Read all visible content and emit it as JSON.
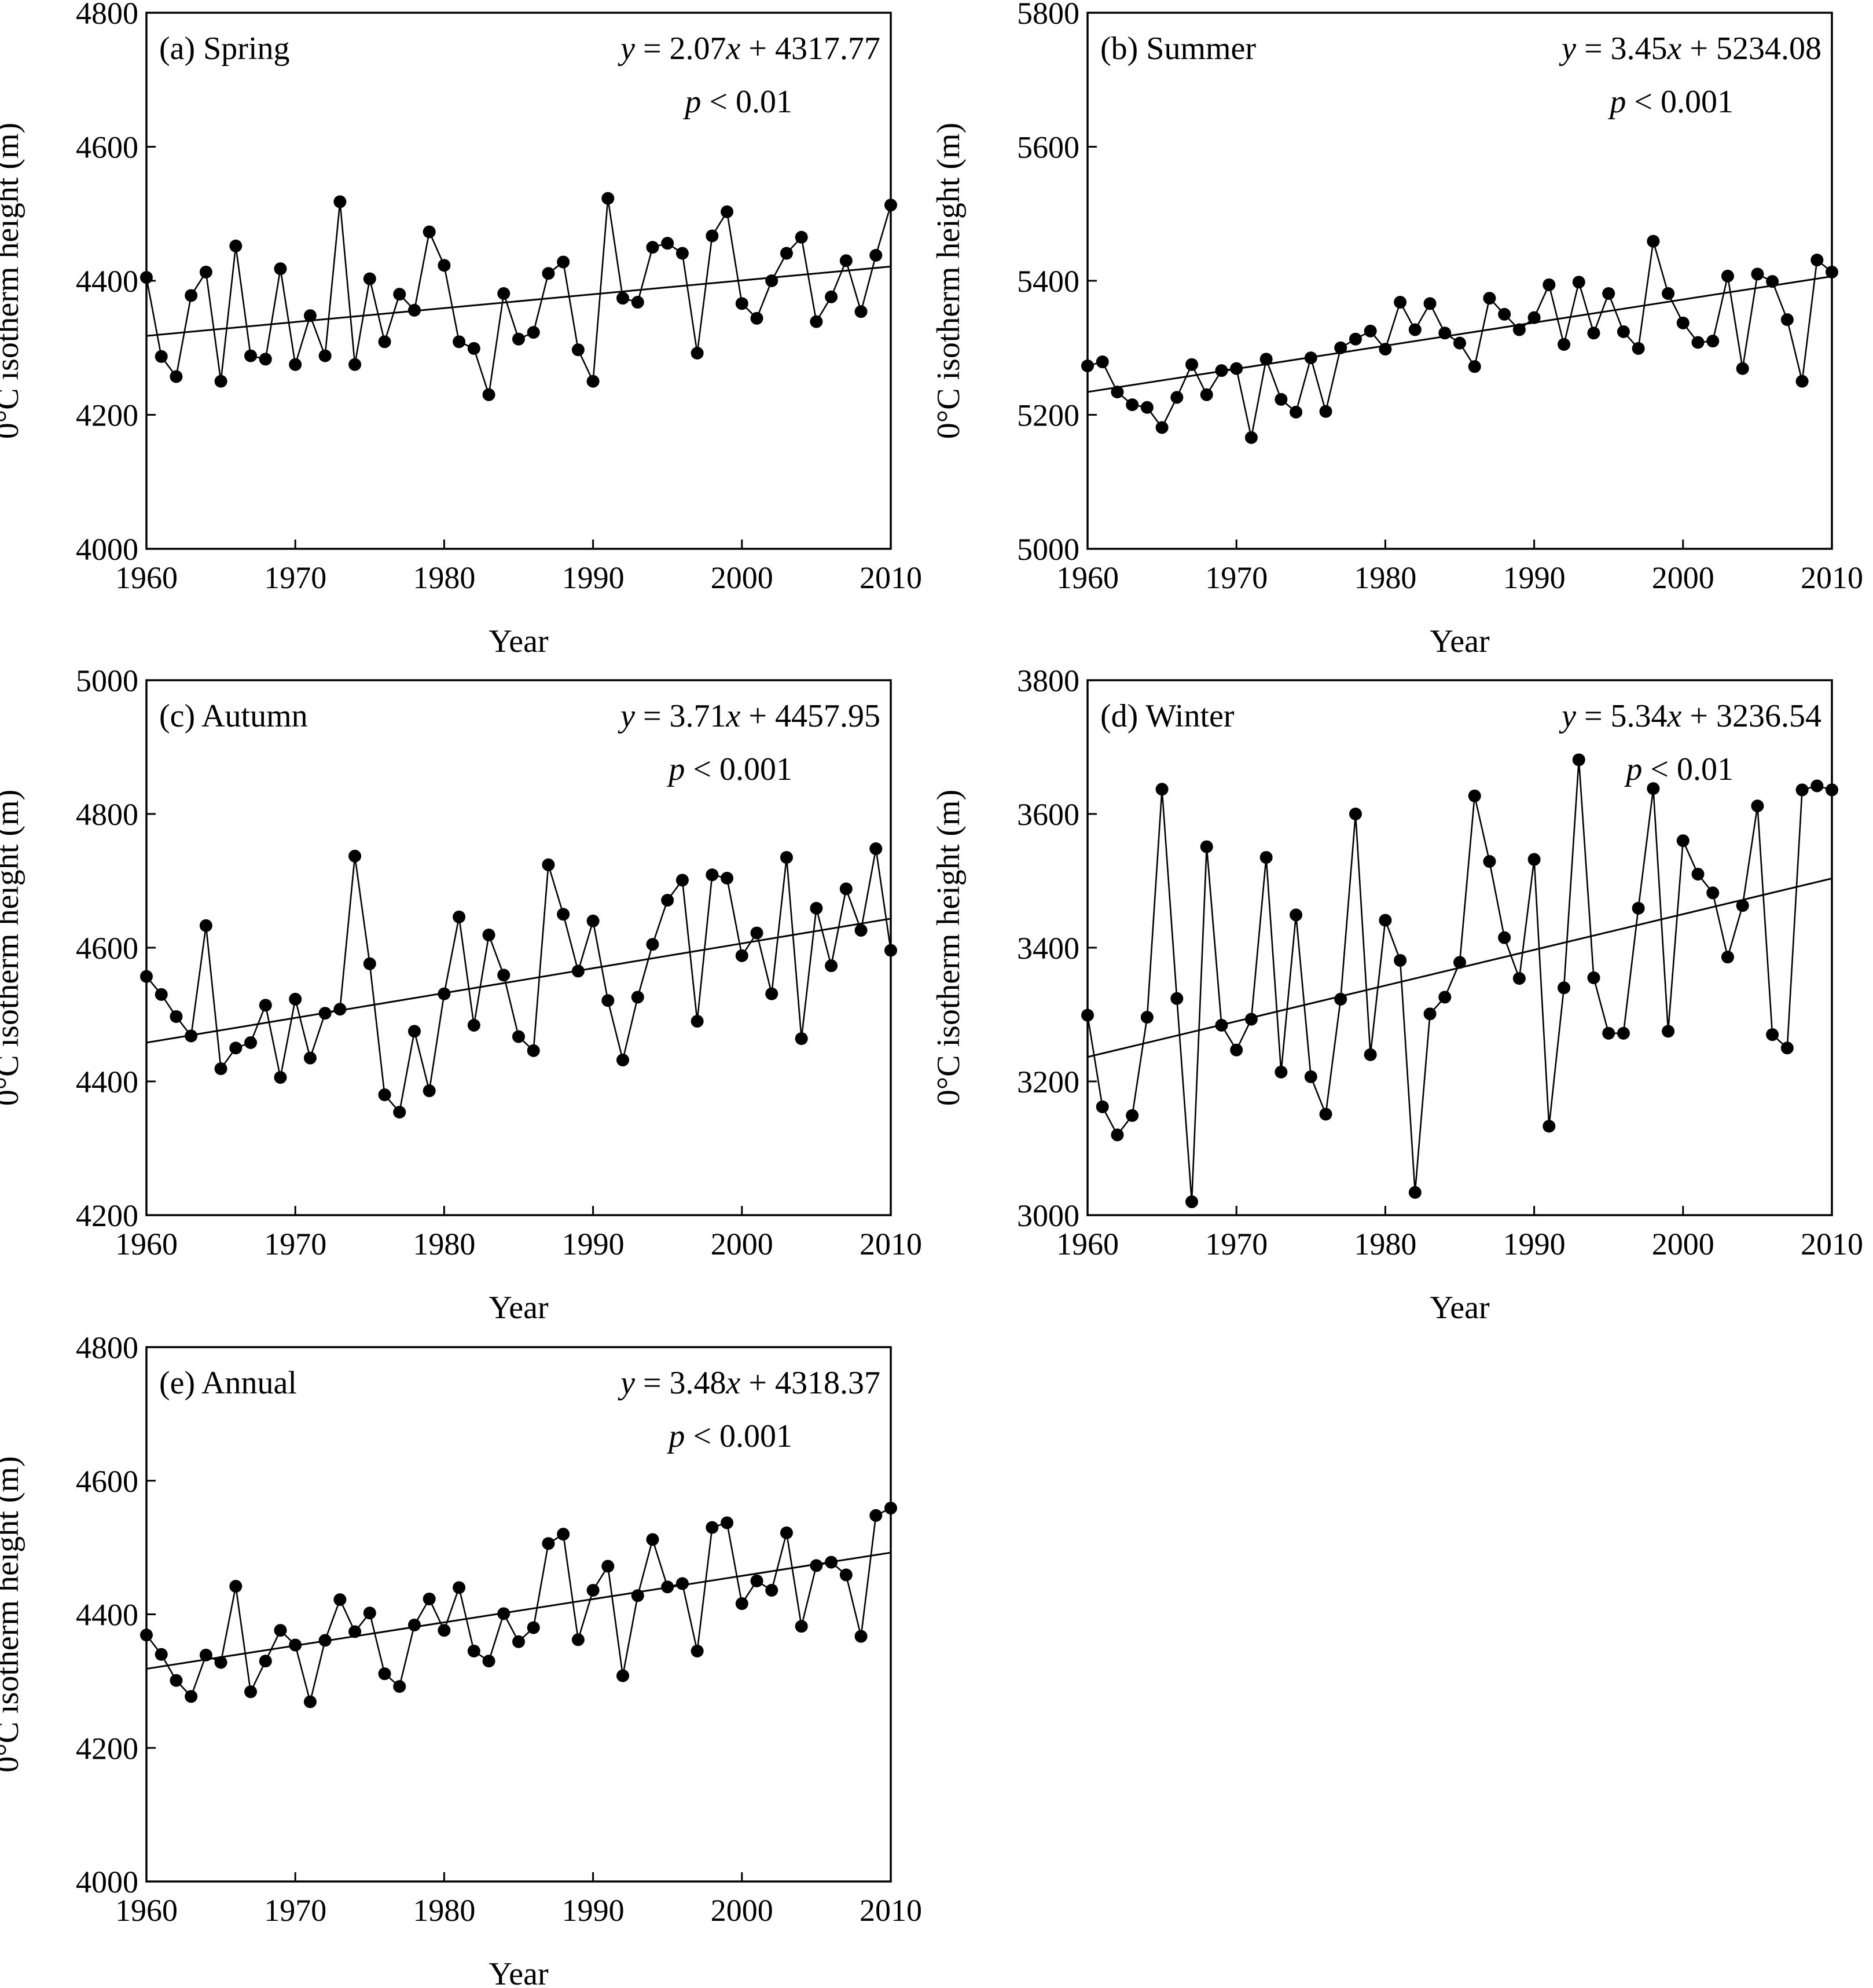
{
  "figure": {
    "panels_count": 5
  },
  "chart_data": [
    {
      "type": "scatter",
      "panel_label": "(a) Spring",
      "equation": {
        "y": "y",
        "eq": " = 2.07",
        "x": "x",
        "rest": " + 4317.77"
      },
      "pvalue": {
        "p": "p",
        "rest": " < 0.01"
      },
      "xlabel": "Year",
      "ylabel": "0°C isotherm height (m)",
      "xlim": [
        1960,
        2010
      ],
      "ylim": [
        4000,
        4800
      ],
      "xticks": [
        1960,
        1970,
        1980,
        1990,
        2000,
        2010
      ],
      "yticks": [
        4000,
        4200,
        4400,
        4600,
        4800
      ],
      "trend": {
        "slope": 2.07,
        "intercept": 4317.77,
        "x0": 1960
      },
      "x": [
        1960,
        1961,
        1962,
        1963,
        1964,
        1965,
        1966,
        1967,
        1968,
        1969,
        1970,
        1971,
        1972,
        1973,
        1974,
        1975,
        1976,
        1977,
        1978,
        1979,
        1980,
        1981,
        1982,
        1983,
        1984,
        1985,
        1986,
        1987,
        1988,
        1989,
        1990,
        1991,
        1992,
        1993,
        1994,
        1995,
        1996,
        1997,
        1998,
        1999,
        2000,
        2001,
        2002,
        2003,
        2004,
        2005,
        2006,
        2007,
        2008,
        2009,
        2010
      ],
      "y": [
        4405,
        4287,
        4257,
        4378,
        4413,
        4250,
        4452,
        4288,
        4283,
        4418,
        4275,
        4348,
        4288,
        4518,
        4275,
        4403,
        4309,
        4380,
        4356,
        4473,
        4423,
        4309,
        4299,
        4230,
        4381,
        4313,
        4323,
        4411,
        4428,
        4297,
        4250,
        4523,
        4374,
        4368,
        4450,
        4456,
        4441,
        4292,
        4467,
        4503,
        4366,
        4344,
        4400,
        4441,
        4465,
        4339,
        4376,
        4430,
        4354,
        4438,
        4513
      ]
    },
    {
      "type": "scatter",
      "panel_label": "(b) Summer",
      "equation": {
        "y": "y",
        "eq": " = 3.45",
        "x": "x",
        "rest": " + 5234.08"
      },
      "pvalue": {
        "p": "p",
        "rest": " < 0.001"
      },
      "xlabel": "Year",
      "ylabel": "0°C isotherm height (m)",
      "xlim": [
        1960,
        2010
      ],
      "ylim": [
        5000,
        5800
      ],
      "xticks": [
        1960,
        1970,
        1980,
        1990,
        2000,
        2010
      ],
      "yticks": [
        5000,
        5200,
        5400,
        5600,
        5800
      ],
      "trend": {
        "slope": 3.45,
        "intercept": 5234.08,
        "x0": 1960
      },
      "x": [
        1960,
        1961,
        1962,
        1963,
        1964,
        1965,
        1966,
        1967,
        1968,
        1969,
        1970,
        1971,
        1972,
        1973,
        1974,
        1975,
        1976,
        1977,
        1978,
        1979,
        1980,
        1981,
        1982,
        1983,
        1984,
        1985,
        1986,
        1987,
        1988,
        1989,
        1990,
        1991,
        1992,
        1993,
        1994,
        1995,
        1996,
        1997,
        1998,
        1999,
        2000,
        2001,
        2002,
        2003,
        2004,
        2005,
        2006,
        2007,
        2008,
        2009,
        2010
      ],
      "y": [
        5273,
        5279,
        5234,
        5215,
        5211,
        5181,
        5226,
        5275,
        5230,
        5266,
        5269,
        5166,
        5283,
        5223,
        5204,
        5285,
        5205,
        5300,
        5313,
        5325,
        5298,
        5368,
        5327,
        5366,
        5322,
        5307,
        5272,
        5374,
        5350,
        5327,
        5345,
        5394,
        5305,
        5398,
        5322,
        5381,
        5324,
        5299,
        5459,
        5381,
        5337,
        5308,
        5310,
        5407,
        5269,
        5410,
        5399,
        5342,
        5250,
        5431,
        5413
      ]
    },
    {
      "type": "scatter",
      "panel_label": "(c) Autumn",
      "equation": {
        "y": "y",
        "eq": " = 3.71",
        "x": "x",
        "rest": " + 4457.95"
      },
      "pvalue": {
        "p": "p",
        "rest": " < 0.001"
      },
      "xlabel": "Year",
      "ylabel": "0°C isotherm height (m)",
      "xlim": [
        1960,
        2010
      ],
      "ylim": [
        4200,
        5000
      ],
      "xticks": [
        1960,
        1970,
        1980,
        1990,
        2000,
        2010
      ],
      "yticks": [
        4200,
        4400,
        4600,
        4800,
        5000
      ],
      "trend": {
        "slope": 3.71,
        "intercept": 4457.95,
        "x0": 1960
      },
      "x": [
        1960,
        1961,
        1962,
        1963,
        1964,
        1965,
        1966,
        1967,
        1968,
        1969,
        1970,
        1971,
        1972,
        1973,
        1974,
        1975,
        1976,
        1977,
        1978,
        1979,
        1980,
        1981,
        1982,
        1983,
        1984,
        1985,
        1986,
        1987,
        1988,
        1989,
        1990,
        1991,
        1992,
        1993,
        1994,
        1995,
        1996,
        1997,
        1998,
        1999,
        2000,
        2001,
        2002,
        2003,
        2004,
        2005,
        2006,
        2007,
        2008,
        2009,
        2010
      ],
      "y": [
        4557,
        4530,
        4497,
        4468,
        4633,
        4419,
        4450,
        4458,
        4514,
        4406,
        4523,
        4435,
        4502,
        4508,
        4737,
        4576,
        4380,
        4354,
        4475,
        4386,
        4531,
        4646,
        4484,
        4619,
        4559,
        4467,
        4446,
        4724,
        4650,
        4565,
        4640,
        4521,
        4432,
        4526,
        4605,
        4671,
        4701,
        4490,
        4709,
        4704,
        4588,
        4622,
        4531,
        4735,
        4464,
        4659,
        4573,
        4688,
        4626,
        4748,
        4596
      ]
    },
    {
      "type": "scatter",
      "panel_label": "(d) Winter",
      "equation": {
        "y": "y",
        "eq": " = 5.34",
        "x": "x",
        "rest": " + 3236.54"
      },
      "pvalue": {
        "p": "p",
        "rest": " < 0.01"
      },
      "xlabel": "Year",
      "ylabel": "0°C isotherm height (m)",
      "xlim": [
        1960,
        2010
      ],
      "ylim": [
        3000,
        3800
      ],
      "xticks": [
        1960,
        1970,
        1980,
        1990,
        2000,
        2010
      ],
      "yticks": [
        3000,
        3200,
        3400,
        3600,
        3800
      ],
      "trend": {
        "slope": 5.34,
        "intercept": 3236.54,
        "x0": 1960
      },
      "x": [
        1960,
        1961,
        1962,
        1963,
        1964,
        1965,
        1966,
        1967,
        1968,
        1969,
        1970,
        1971,
        1972,
        1973,
        1974,
        1975,
        1976,
        1977,
        1978,
        1979,
        1980,
        1981,
        1982,
        1983,
        1984,
        1985,
        1986,
        1987,
        1988,
        1989,
        1990,
        1991,
        1992,
        1993,
        1994,
        1995,
        1996,
        1997,
        1998,
        1999,
        2000,
        2001,
        2002,
        2003,
        2004,
        2005,
        2006,
        2007,
        2008,
        2009,
        2010
      ],
      "y": [
        3299,
        3162,
        3120,
        3149,
        3296,
        3637,
        3324,
        3020,
        3551,
        3284,
        3247,
        3293,
        3535,
        3214,
        3449,
        3207,
        3151,
        3323,
        3600,
        3240,
        3441,
        3381,
        3034,
        3301,
        3326,
        3378,
        3627,
        3529,
        3415,
        3354,
        3532,
        3133,
        3340,
        3681,
        3355,
        3272,
        3272,
        3459,
        3638,
        3275,
        3560,
        3510,
        3482,
        3386,
        3463,
        3612,
        3270,
        3250,
        3636,
        3642,
        3636
      ]
    },
    {
      "type": "scatter",
      "panel_label": "(e) Annual",
      "equation": {
        "y": "y",
        "eq": " = 3.48",
        "x": "x",
        "rest": " + 4318.37"
      },
      "pvalue": {
        "p": "p",
        "rest": " < 0.001"
      },
      "xlabel": "Year",
      "ylabel": "0°C isotherm height (m)",
      "xlim": [
        1960,
        2010
      ],
      "ylim": [
        4000,
        4800
      ],
      "xticks": [
        1960,
        1970,
        1980,
        1990,
        2000,
        2010
      ],
      "yticks": [
        4000,
        4200,
        4400,
        4600,
        4800
      ],
      "trend": {
        "slope": 3.48,
        "intercept": 4318.37,
        "x0": 1960
      },
      "x": [
        1960,
        1961,
        1962,
        1963,
        1964,
        1965,
        1966,
        1967,
        1968,
        1969,
        1970,
        1971,
        1972,
        1973,
        1974,
        1975,
        1976,
        1977,
        1978,
        1979,
        1980,
        1981,
        1982,
        1983,
        1984,
        1985,
        1986,
        1987,
        1988,
        1989,
        1990,
        1991,
        1992,
        1993,
        1994,
        1995,
        1996,
        1997,
        1998,
        1999,
        2000,
        2001,
        2002,
        2003,
        2004,
        2005,
        2006,
        2007,
        2008,
        2009,
        2010
      ],
      "y": [
        4369,
        4340,
        4301,
        4277,
        4339,
        4328,
        4442,
        4284,
        4330,
        4376,
        4354,
        4269,
        4361,
        4422,
        4374,
        4402,
        4311,
        4292,
        4384,
        4423,
        4376,
        4440,
        4345,
        4330,
        4401,
        4359,
        4380,
        4506,
        4520,
        4362,
        4436,
        4472,
        4308,
        4428,
        4512,
        4441,
        4446,
        4345,
        4530,
        4537,
        4416,
        4450,
        4436,
        4522,
        4382,
        4473,
        4478,
        4459,
        4367,
        4548,
        4559
      ]
    }
  ]
}
